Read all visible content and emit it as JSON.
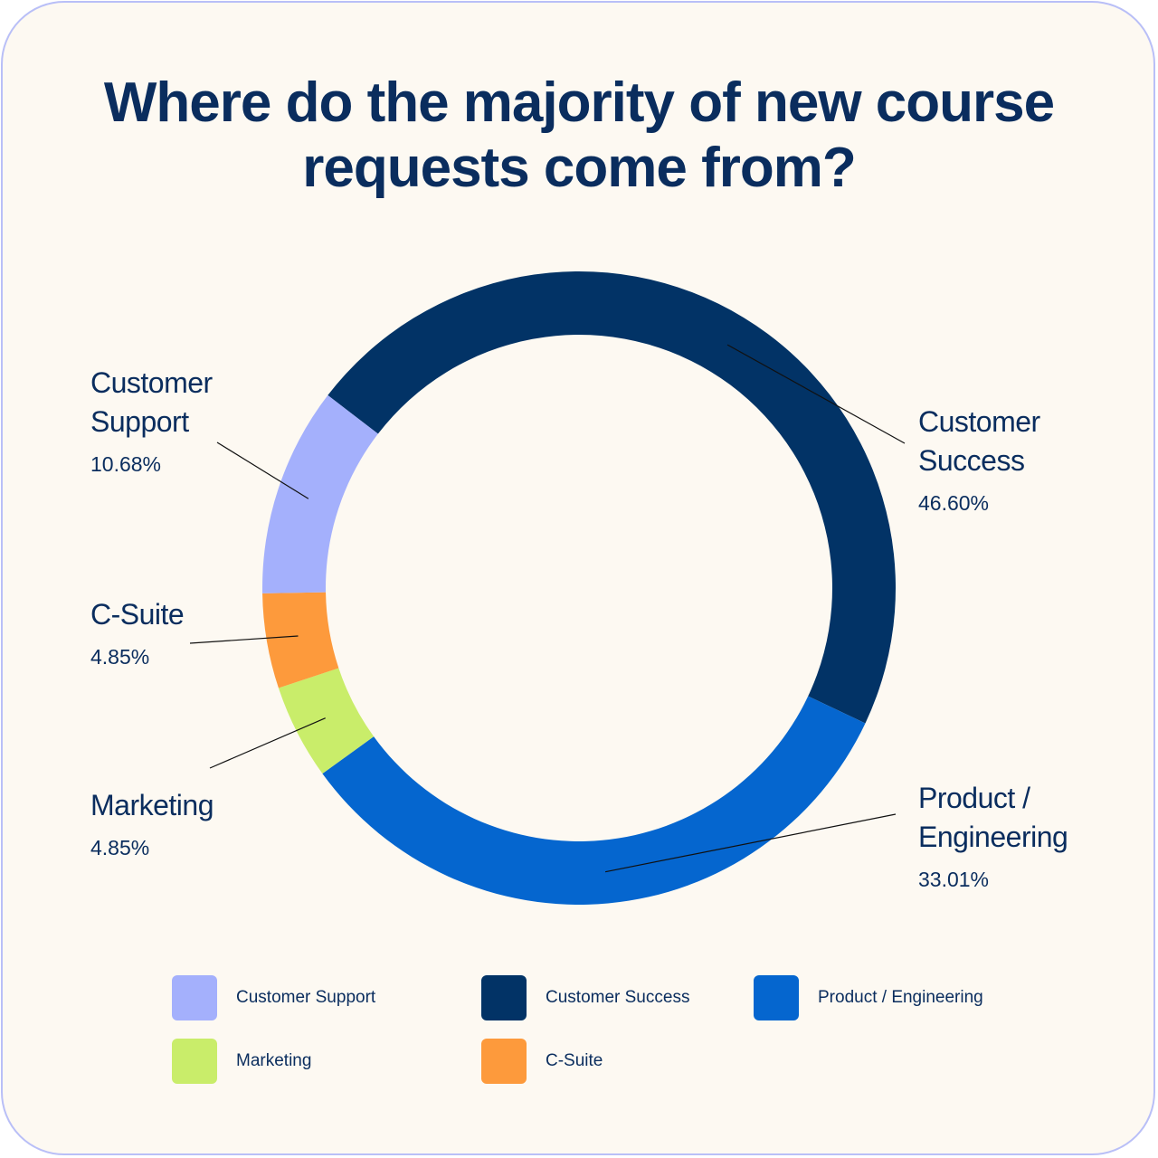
{
  "chart_data": {
    "type": "pie",
    "title": "Where do the majority of new course requests come from?",
    "title_lines": [
      "Where do the majority of new course",
      "requests come from?"
    ],
    "style": "donut",
    "labels": [
      "Customer Success",
      "Product / Engineering",
      "Marketing",
      "C-Suite",
      "Customer Support"
    ],
    "values": [
      46.6,
      33.01,
      4.85,
      4.85,
      10.68
    ],
    "colors": [
      "#023366",
      "#0566cf",
      "#c9ed6a",
      "#fd9a3c",
      "#a4b0fc"
    ],
    "callouts": [
      {
        "name_lines": [
          "Customer",
          "Success"
        ],
        "value_text": "46.60%"
      },
      {
        "name_lines": [
          "Product /",
          "Engineering"
        ],
        "value_text": "33.01%"
      },
      {
        "name_lines": [
          "Marketing"
        ],
        "value_text": "4.85%"
      },
      {
        "name_lines": [
          "C-Suite"
        ],
        "value_text": "4.85%"
      },
      {
        "name_lines": [
          "Customer",
          "Support"
        ],
        "value_text": "10.68%"
      }
    ],
    "legend": {
      "placement": "bottom",
      "items": [
        {
          "label": "Customer Support",
          "color": "#a4b0fc"
        },
        {
          "label": "Customer Success",
          "color": "#023366"
        },
        {
          "label": "Product / Engineering",
          "color": "#0566cf"
        },
        {
          "label": "Marketing",
          "color": "#c9ed6a"
        },
        {
          "label": "C-Suite",
          "color": "#fd9a3c"
        }
      ]
    }
  }
}
